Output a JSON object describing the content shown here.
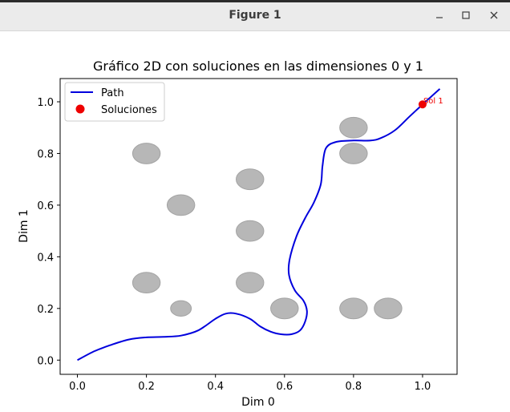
{
  "window": {
    "title": "Figure 1",
    "minimize_icon": "minimize-icon",
    "maximize_icon": "maximize-icon",
    "close_icon": "close-icon"
  },
  "chart_data": {
    "type": "line",
    "title": "Gráfico 2D con soluciones en las dimensiones 0 y 1",
    "xlabel": "Dim 0",
    "ylabel": "Dim 1",
    "xlim": [
      -0.05,
      1.1
    ],
    "ylim": [
      -0.055,
      1.09
    ],
    "xticks": [
      0.0,
      0.2,
      0.4,
      0.6,
      0.8,
      1.0
    ],
    "xtick_labels": [
      "0.0",
      "0.2",
      "0.4",
      "0.6",
      "0.8",
      "1.0"
    ],
    "yticks": [
      0.0,
      0.2,
      0.4,
      0.6,
      0.8,
      1.0
    ],
    "ytick_labels": [
      "0.0",
      "0.2",
      "0.4",
      "0.6",
      "0.8",
      "1.0"
    ],
    "grid": false,
    "legend": {
      "placement": "upper-left",
      "entries": [
        {
          "label": "Path",
          "color": "#0000dd",
          "marker": "line"
        },
        {
          "label": "Soluciones",
          "color": "#ee0000",
          "marker": "dot"
        }
      ]
    },
    "obstacles": {
      "color": "#b7b7b7",
      "edge_color": "#a3a3a3",
      "items": [
        {
          "x": 0.2,
          "y": 0.8,
          "r": 0.04
        },
        {
          "x": 0.3,
          "y": 0.6,
          "r": 0.04
        },
        {
          "x": 0.2,
          "y": 0.3,
          "r": 0.04
        },
        {
          "x": 0.3,
          "y": 0.2,
          "r": 0.03
        },
        {
          "x": 0.5,
          "y": 0.7,
          "r": 0.04
        },
        {
          "x": 0.5,
          "y": 0.5,
          "r": 0.04
        },
        {
          "x": 0.5,
          "y": 0.3,
          "r": 0.04
        },
        {
          "x": 0.6,
          "y": 0.2,
          "r": 0.04
        },
        {
          "x": 0.8,
          "y": 0.9,
          "r": 0.04
        },
        {
          "x": 0.8,
          "y": 0.8,
          "r": 0.04
        },
        {
          "x": 0.8,
          "y": 0.2,
          "r": 0.04
        },
        {
          "x": 0.9,
          "y": 0.2,
          "r": 0.04
        }
      ]
    },
    "series": [
      {
        "name": "Path",
        "color": "#0000dd",
        "points": [
          [
            0.0,
            0.0
          ],
          [
            0.05,
            0.035
          ],
          [
            0.1,
            0.06
          ],
          [
            0.15,
            0.08
          ],
          [
            0.2,
            0.088
          ],
          [
            0.25,
            0.09
          ],
          [
            0.3,
            0.095
          ],
          [
            0.35,
            0.115
          ],
          [
            0.4,
            0.16
          ],
          [
            0.43,
            0.18
          ],
          [
            0.46,
            0.18
          ],
          [
            0.5,
            0.16
          ],
          [
            0.53,
            0.13
          ],
          [
            0.56,
            0.11
          ],
          [
            0.59,
            0.1
          ],
          [
            0.62,
            0.1
          ],
          [
            0.645,
            0.115
          ],
          [
            0.66,
            0.15
          ],
          [
            0.665,
            0.19
          ],
          [
            0.655,
            0.23
          ],
          [
            0.63,
            0.27
          ],
          [
            0.613,
            0.33
          ],
          [
            0.615,
            0.39
          ],
          [
            0.635,
            0.48
          ],
          [
            0.66,
            0.55
          ],
          [
            0.685,
            0.61
          ],
          [
            0.705,
            0.68
          ],
          [
            0.71,
            0.75
          ],
          [
            0.72,
            0.82
          ],
          [
            0.75,
            0.845
          ],
          [
            0.8,
            0.85
          ],
          [
            0.85,
            0.85
          ],
          [
            0.88,
            0.86
          ],
          [
            0.92,
            0.89
          ],
          [
            0.96,
            0.94
          ],
          [
            1.0,
            0.99
          ],
          [
            1.025,
            1.02
          ],
          [
            1.05,
            1.05
          ]
        ]
      }
    ],
    "solutions": [
      {
        "name": "Soluciones",
        "x": 1.0,
        "y": 0.99,
        "label": "Sol 1",
        "color": "#ee0000"
      }
    ]
  }
}
